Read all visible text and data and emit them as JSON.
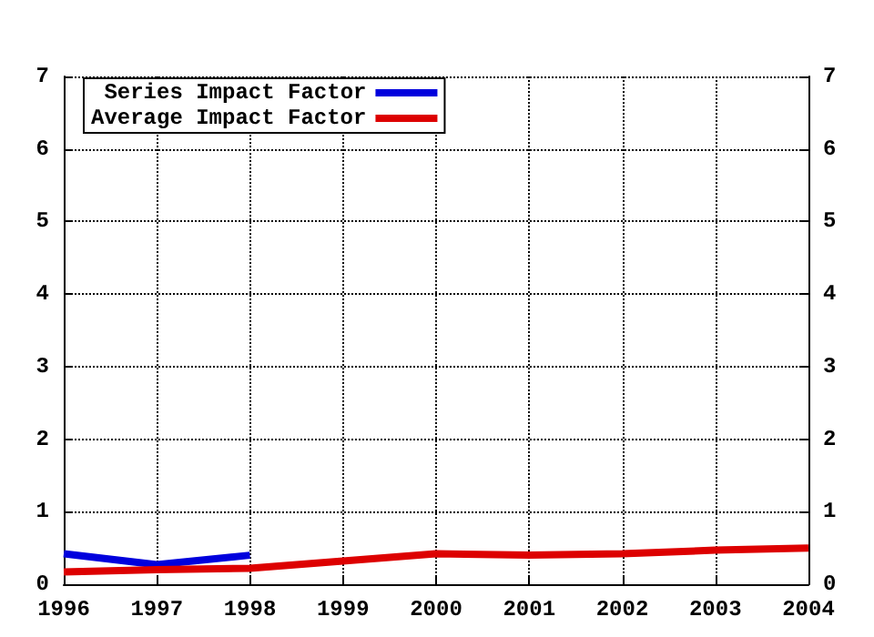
{
  "chart_data": {
    "type": "line",
    "x": [
      1996,
      1997,
      1998,
      1999,
      2000,
      2001,
      2002,
      2003,
      2004
    ],
    "series": [
      {
        "name": "Series Impact Factor",
        "color": "#0000dd",
        "values": [
          0.42,
          0.27,
          0.4,
          null,
          null,
          null,
          null,
          null,
          null
        ]
      },
      {
        "name": "Average Impact Factor",
        "color": "#dd0000",
        "values": [
          0.17,
          0.2,
          0.22,
          0.32,
          0.42,
          0.4,
          0.42,
          0.47,
          0.5
        ]
      }
    ],
    "xlim": [
      1996,
      2004
    ],
    "xticks": [
      1996,
      1997,
      1998,
      1999,
      2000,
      2001,
      2002,
      2003,
      2004
    ],
    "ylim": [
      0,
      7
    ],
    "yticks": [
      0,
      1,
      2,
      3,
      4,
      5,
      6,
      7
    ],
    "y2lim": [
      0,
      7
    ],
    "y2ticks": [
      0,
      1,
      2,
      3,
      4,
      5,
      6,
      7
    ],
    "grid": true,
    "legend": "top left",
    "marker": "none",
    "line_style": "solid"
  }
}
